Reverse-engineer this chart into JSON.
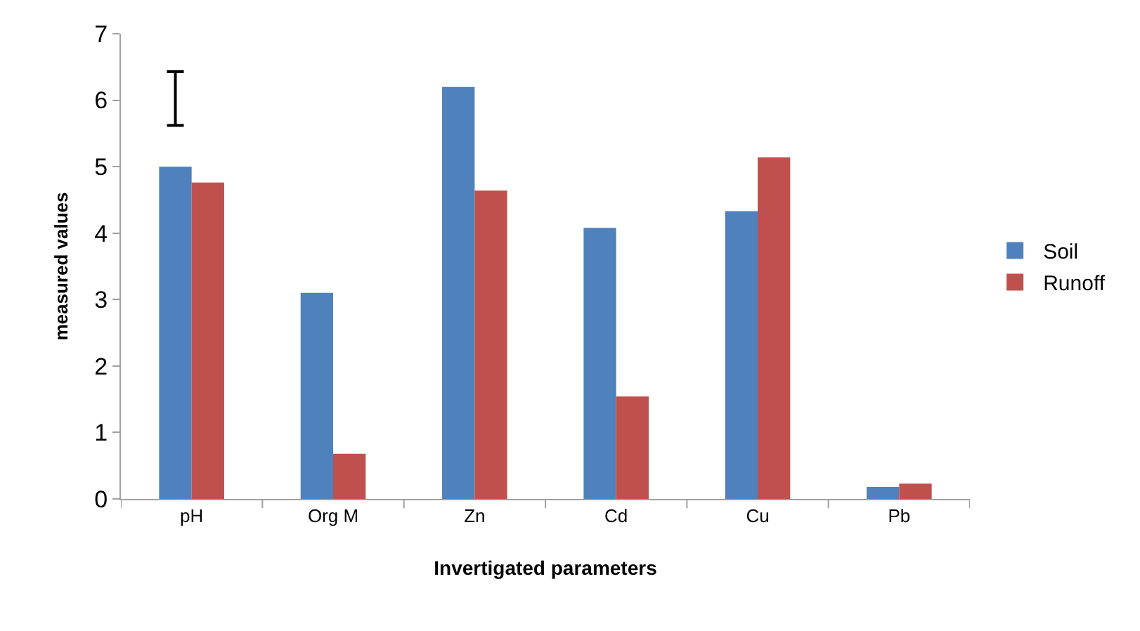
{
  "chart_data": {
    "type": "bar",
    "xlabel": "Invertigated parameters",
    "ylabel": "measured values",
    "categories": [
      "pH",
      "Org M",
      "Zn",
      "Cd",
      "Cu",
      "Pb"
    ],
    "series": [
      {
        "name": "Soil",
        "color": "#4f81bd",
        "values": [
          5.0,
          3.1,
          6.2,
          4.08,
          4.33,
          0.18
        ],
        "errors": [
          [
            5.62,
            6.43
          ],
          null,
          null,
          null,
          null,
          null
        ]
      },
      {
        "name": "Runoff",
        "color": "#c0504d",
        "values": [
          4.76,
          0.68,
          4.64,
          1.54,
          5.14,
          0.23
        ]
      }
    ],
    "ylim": [
      0,
      7
    ],
    "yticks": [
      0,
      1,
      2,
      3,
      4,
      5,
      6,
      7
    ],
    "legend": "right"
  }
}
